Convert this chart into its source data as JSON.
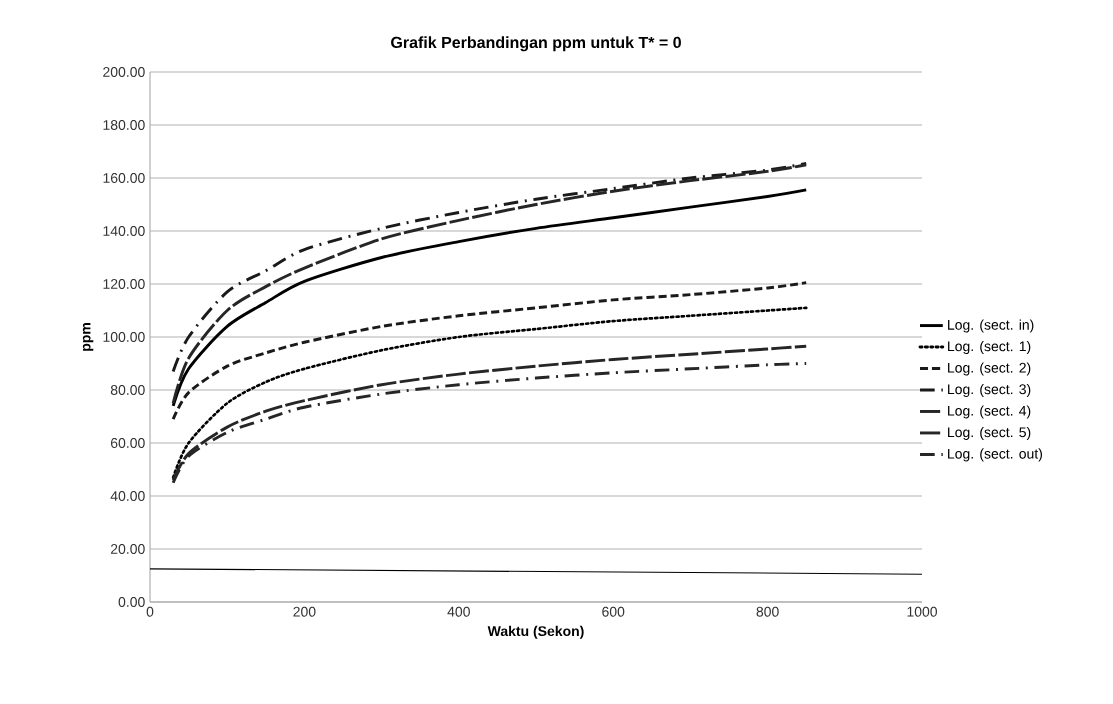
{
  "chart_data": {
    "type": "line",
    "title": "Grafik Perbandingan ppm untuk T* = 0",
    "xlabel": "Waktu (Sekon)",
    "ylabel": "ppm",
    "x": [
      30,
      50,
      100,
      150,
      200,
      300,
      400,
      500,
      600,
      700,
      800,
      850
    ],
    "series": [
      {
        "name": "Log. (sect. in)",
        "color": "#000000",
        "line_style": "solid",
        "values": [
          74,
          88,
          104,
          113,
          121,
          130,
          136,
          141,
          145,
          149,
          153,
          155.5
        ]
      },
      {
        "name": "Log. (sect. 1)",
        "color": "#000000",
        "line_style": "dotted",
        "values": [
          47,
          60,
          75,
          83,
          88,
          95,
          100,
          103,
          106,
          108,
          110,
          111
        ]
      },
      {
        "name": "Log. (sect. 2)",
        "color": "#1a1a1a",
        "line_style": "dashed",
        "values": [
          69,
          79,
          89,
          94,
          98,
          104,
          108,
          111,
          114,
          116,
          118.5,
          120.5
        ]
      },
      {
        "name": "Log. (sect. 3)",
        "color": "#1a1a1a",
        "line_style": "dashdot",
        "values": [
          87,
          100,
          117,
          125,
          133,
          141,
          147,
          152,
          156,
          160,
          163,
          165.5
        ]
      },
      {
        "name": "Log. (sect. 4)",
        "color": "#262626",
        "line_style": "longdash",
        "values": [
          75,
          92,
          110,
          119,
          126,
          137,
          144,
          150,
          155,
          159,
          162.5,
          165
        ]
      },
      {
        "name": "Log. (sect. 5)",
        "color": "#262626",
        "line_style": "longdash",
        "values": [
          46,
          56,
          66,
          72,
          76,
          82,
          86,
          89,
          91.5,
          93.5,
          95.5,
          96.5
        ]
      },
      {
        "name": "Log. (sect. out)",
        "color": "#262626",
        "line_style": "dashdot",
        "values": [
          45,
          55,
          64,
          69,
          73.5,
          78.5,
          82,
          84.5,
          86.5,
          88,
          89.5,
          90
        ]
      },
      {
        "color": "#000000",
        "line_style": "solid",
        "x": [
          0,
          1000
        ],
        "values": [
          12.5,
          10.5
        ]
      }
    ],
    "xlim": [
      0,
      1000
    ],
    "xticks": [
      0,
      200,
      400,
      600,
      800,
      1000
    ],
    "ylim": [
      0,
      200
    ],
    "yticks": [
      {
        "value": 0,
        "label": "0.00"
      },
      {
        "value": 20,
        "label": "20.00"
      },
      {
        "value": 40,
        "label": "40.00"
      },
      {
        "value": 60,
        "label": "60.00"
      },
      {
        "value": 80,
        "label": "80.00"
      },
      {
        "value": 100,
        "label": "100.00"
      },
      {
        "value": 120,
        "label": "120.00"
      },
      {
        "value": 140,
        "label": "140.00"
      },
      {
        "value": 160,
        "label": "160.00"
      },
      {
        "value": 180,
        "label": "180.00"
      },
      {
        "value": 200,
        "label": "200.00"
      }
    ],
    "grid": "y",
    "legend": "right",
    "marker": "none"
  }
}
